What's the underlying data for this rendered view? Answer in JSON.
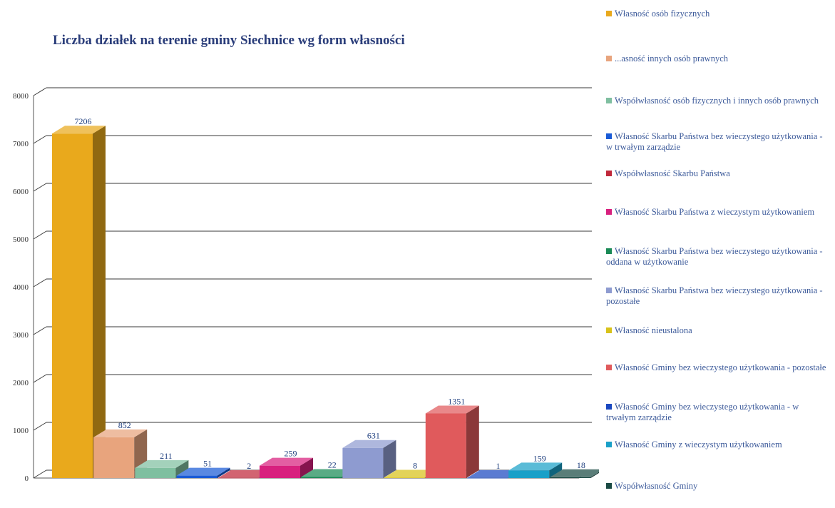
{
  "chart_data": {
    "type": "bar",
    "title": "Liczba działek na terenie gminy Siechnice wg form własności",
    "xlabel": "",
    "ylabel": "",
    "ylim": [
      0,
      8000
    ],
    "yticks": [
      0,
      1000,
      2000,
      3000,
      4000,
      5000,
      6000,
      7000,
      8000
    ],
    "grid": true,
    "legend_position": "right",
    "categories": [
      "Własność osób fizycznych",
      "Własność innych osób prawnych",
      "Współwłasność osób fizycznych i innych osób prawnych",
      "Własność Skarbu Państwa bez wieczystego użytkowania - w trwałym zarządzie",
      "Współwłasność Skarbu Państwa",
      "Własność Skarbu Państwa z wieczystym użytkowaniem",
      "Własność Skarbu Państwa bez wieczystego użytkowania - oddana w użytkowanie",
      "Własność Skarbu Państwa bez wieczystego użytkowania - pozostałe",
      "Własność nieustalona",
      "Własność Gminy bez wieczystego użytkowania - pozostałe",
      "Własność Gminy bez wieczystego użytkowania - w trwałym zarządzie",
      "Własność Gminy z wieczystym użytkowaniem",
      "Współwłasność Gminy"
    ],
    "values": [
      7206,
      852,
      211,
      51,
      2,
      259,
      22,
      631,
      8,
      1351,
      1,
      159,
      18
    ],
    "colors": [
      "#e9a91c",
      "#e8a47d",
      "#7fbfa0",
      "#1a5bd6",
      "#c0283a",
      "#d8207e",
      "#1a8a56",
      "#8e9bd0",
      "#d8c21a",
      "#e05a5c",
      "#1a48c0",
      "#1aa0c8",
      "#1a4a44"
    ],
    "legend_display": [
      "Własność osób fizycznych",
      "...asność innych osób prawnych",
      "Współwłasność osób fizycznych i innych osób prawnych",
      "Własność Skarbu Państwa bez wieczystego użytkowania - w trwałym zarządzie",
      "Współwłasność Skarbu Państwa",
      "Własność Skarbu Państwa z wieczystym użytkowaniem",
      "Własność Skarbu Państwa bez wieczystego użytkowania - oddana w użytkowanie",
      "Własność Skarbu Państwa bez wieczystego użytkowania - pozostałe",
      "Własność nieustalona",
      "Własność Gminy bez wieczystego użytkowania - pozostałe",
      "Własność Gminy bez wieczystego użytkowania - w trwałym zarządzie",
      "Własność Gminy z wieczystym użytkowaniem",
      "Współwłasność Gminy"
    ]
  }
}
